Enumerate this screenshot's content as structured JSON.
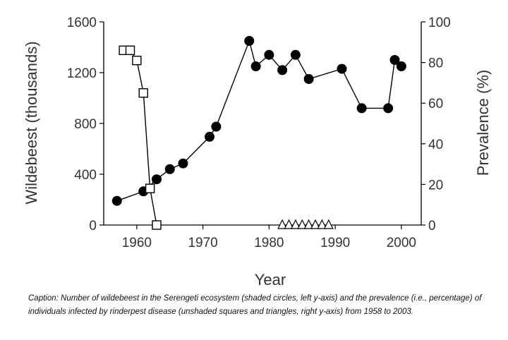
{
  "chart_data": {
    "type": "scatter",
    "title": "",
    "xlabel": "Year",
    "ylabel": "Wildebeest (thousands)",
    "y2label": "Prevalence (%)",
    "xlim": [
      1955,
      2003
    ],
    "ylim": [
      0,
      1600
    ],
    "y2lim": [
      0,
      100
    ],
    "x_ticks": [
      1960,
      1970,
      1980,
      1990,
      2000
    ],
    "y_ticks": [
      0,
      400,
      800,
      1200,
      1600
    ],
    "y2_ticks": [
      0,
      20,
      40,
      60,
      80,
      100
    ],
    "grid": false,
    "legend": "none",
    "series": [
      {
        "marker": "filled-circle",
        "axis": "left",
        "connected": true,
        "color": "#000000",
        "x": [
          1957,
          1961,
          1963,
          1965,
          1967,
          1971,
          1972,
          1977,
          1978,
          1980,
          1982,
          1984,
          1986,
          1991,
          1994,
          1998,
          1999,
          2000
        ],
        "y": [
          190,
          265,
          360,
          440,
          485,
          695,
          775,
          1450,
          1250,
          1340,
          1220,
          1340,
          1150,
          1230,
          920,
          920,
          1300,
          1250
        ]
      },
      {
        "marker": "open-square",
        "axis": "right",
        "connected": true,
        "color": "#000000",
        "x": [
          1958,
          1959,
          1960,
          1961,
          1962,
          1963
        ],
        "y": [
          86,
          86,
          81,
          65,
          18,
          0
        ]
      },
      {
        "marker": "open-triangle",
        "axis": "right",
        "connected": false,
        "color": "#000000",
        "x": [
          1982,
          1983,
          1984,
          1985,
          1986,
          1987,
          1988,
          1989
        ],
        "y": [
          0,
          0,
          0,
          0,
          0,
          0,
          0,
          0
        ]
      }
    ]
  },
  "caption": "Caption: Number of wildebeest in the Serengeti ecosystem (shaded circles, left y-axis) and the prevalence (i.e., percentage) of individuals infected by rinderpest disease (unshaded squares and triangles, right y-axis) from 1958 to 2003."
}
